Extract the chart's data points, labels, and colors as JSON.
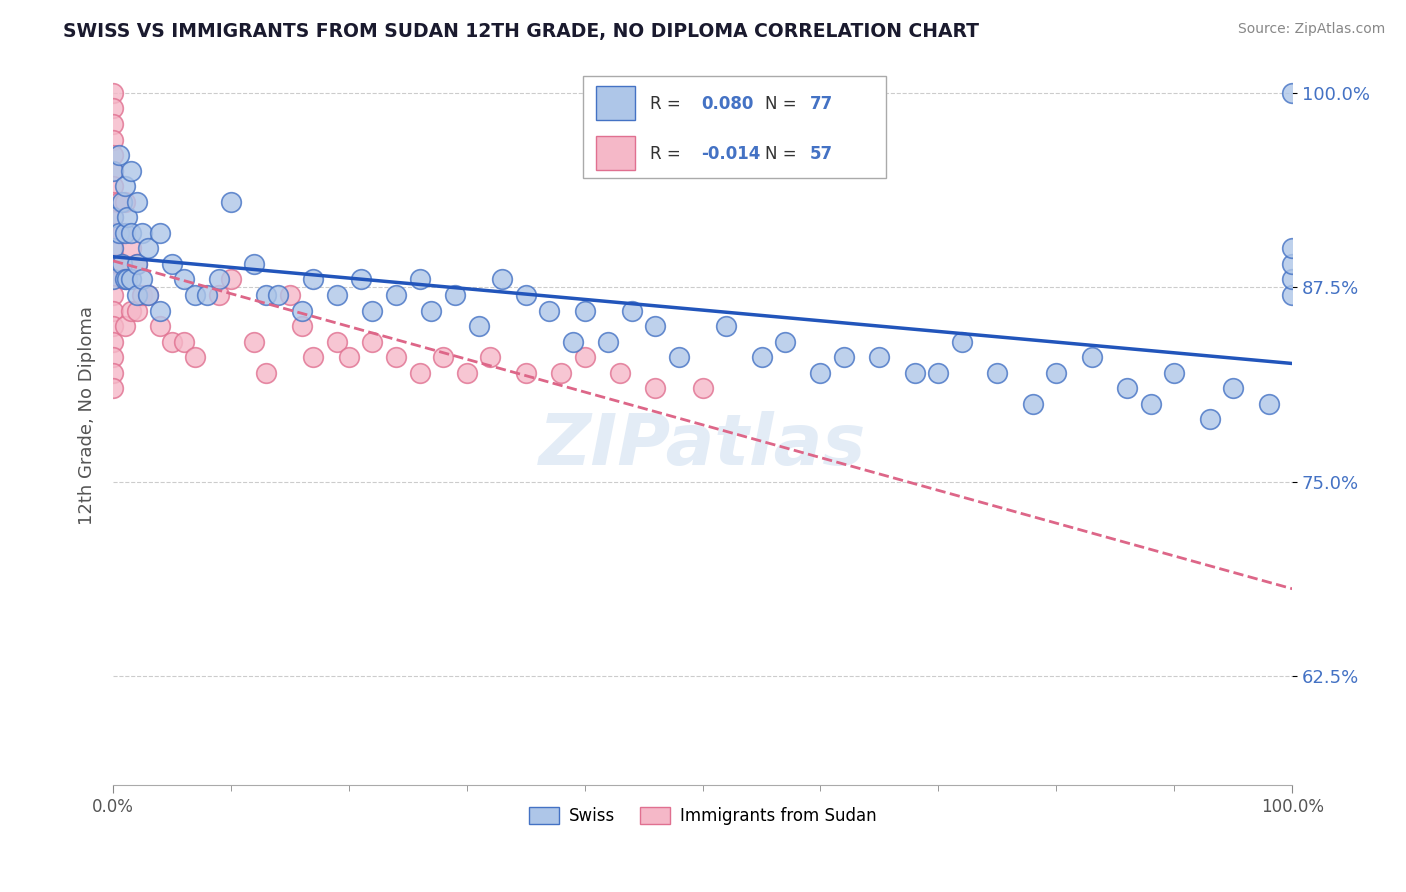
{
  "title": "SWISS VS IMMIGRANTS FROM SUDAN 12TH GRADE, NO DIPLOMA CORRELATION CHART",
  "source": "Source: ZipAtlas.com",
  "ylabel": "12th Grade, No Diploma",
  "legend_swiss": "Swiss",
  "legend_sudan": "Immigrants from Sudan",
  "r_swiss": 0.08,
  "n_swiss": 77,
  "r_sudan": -0.014,
  "n_sudan": 57,
  "color_swiss_fill": "#aec6e8",
  "color_swiss_edge": "#4472c4",
  "color_sudan_fill": "#f5b8c8",
  "color_sudan_edge": "#e07090",
  "color_swiss_line": "#2255bb",
  "color_sudan_line": "#dd6688",
  "grid_color": "#cccccc",
  "background_color": "#ffffff",
  "title_color": "#1a1a2e",
  "ytick_color": "#4472c4",
  "ytick_vals": [
    0.625,
    0.75,
    0.875,
    1.0
  ],
  "ytick_labels": [
    "62.5%",
    "75.0%",
    "87.5%",
    "100.0%"
  ],
  "xlim": [
    0.0,
    1.0
  ],
  "ylim": [
    0.555,
    1.03
  ],
  "swiss_x": [
    0.0,
    0.0,
    0.0,
    0.0,
    0.005,
    0.005,
    0.008,
    0.008,
    0.01,
    0.01,
    0.01,
    0.012,
    0.012,
    0.015,
    0.015,
    0.015,
    0.02,
    0.02,
    0.02,
    0.025,
    0.025,
    0.03,
    0.03,
    0.04,
    0.04,
    0.05,
    0.06,
    0.07,
    0.08,
    0.09,
    0.1,
    0.12,
    0.13,
    0.14,
    0.16,
    0.17,
    0.19,
    0.21,
    0.22,
    0.24,
    0.26,
    0.27,
    0.29,
    0.31,
    0.33,
    0.35,
    0.37,
    0.39,
    0.4,
    0.42,
    0.44,
    0.46,
    0.48,
    0.52,
    0.55,
    0.57,
    0.6,
    0.62,
    0.65,
    0.68,
    0.7,
    0.72,
    0.75,
    0.78,
    0.8,
    0.83,
    0.86,
    0.88,
    0.9,
    0.93,
    0.95,
    0.98,
    1.0,
    1.0,
    1.0,
    1.0,
    1.0
  ],
  "swiss_y": [
    0.95,
    0.92,
    0.9,
    0.88,
    0.96,
    0.91,
    0.93,
    0.89,
    0.94,
    0.91,
    0.88,
    0.92,
    0.88,
    0.95,
    0.91,
    0.88,
    0.93,
    0.89,
    0.87,
    0.91,
    0.88,
    0.9,
    0.87,
    0.91,
    0.86,
    0.89,
    0.88,
    0.87,
    0.87,
    0.88,
    0.93,
    0.89,
    0.87,
    0.87,
    0.86,
    0.88,
    0.87,
    0.88,
    0.86,
    0.87,
    0.88,
    0.86,
    0.87,
    0.85,
    0.88,
    0.87,
    0.86,
    0.84,
    0.86,
    0.84,
    0.86,
    0.85,
    0.83,
    0.85,
    0.83,
    0.84,
    0.82,
    0.83,
    0.83,
    0.82,
    0.82,
    0.84,
    0.82,
    0.8,
    0.82,
    0.83,
    0.81,
    0.8,
    0.82,
    0.79,
    0.81,
    0.8,
    0.87,
    0.88,
    0.89,
    0.9,
    1.0
  ],
  "sudan_x": [
    0.0,
    0.0,
    0.0,
    0.0,
    0.0,
    0.0,
    0.0,
    0.0,
    0.0,
    0.0,
    0.0,
    0.0,
    0.0,
    0.0,
    0.0,
    0.0,
    0.0,
    0.0,
    0.0,
    0.0,
    0.005,
    0.005,
    0.008,
    0.01,
    0.01,
    0.01,
    0.015,
    0.015,
    0.02,
    0.02,
    0.025,
    0.03,
    0.04,
    0.05,
    0.06,
    0.07,
    0.09,
    0.1,
    0.12,
    0.13,
    0.15,
    0.16,
    0.17,
    0.19,
    0.2,
    0.22,
    0.24,
    0.26,
    0.28,
    0.3,
    0.32,
    0.35,
    0.38,
    0.4,
    0.43,
    0.46,
    0.5
  ],
  "sudan_y": [
    1.0,
    0.99,
    0.98,
    0.97,
    0.96,
    0.95,
    0.94,
    0.93,
    0.92,
    0.91,
    0.9,
    0.89,
    0.88,
    0.87,
    0.86,
    0.85,
    0.84,
    0.83,
    0.82,
    0.81,
    0.93,
    0.89,
    0.91,
    0.93,
    0.88,
    0.85,
    0.9,
    0.86,
    0.89,
    0.86,
    0.87,
    0.87,
    0.85,
    0.84,
    0.84,
    0.83,
    0.87,
    0.88,
    0.84,
    0.82,
    0.87,
    0.85,
    0.83,
    0.84,
    0.83,
    0.84,
    0.83,
    0.82,
    0.83,
    0.82,
    0.83,
    0.82,
    0.82,
    0.83,
    0.82,
    0.81,
    0.81
  ]
}
